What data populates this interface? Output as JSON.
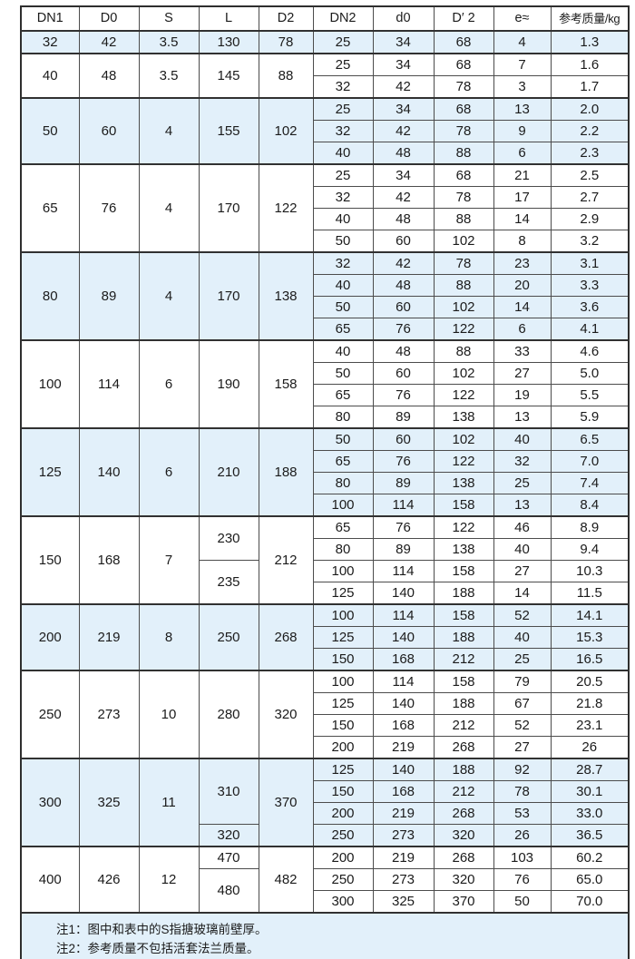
{
  "table": {
    "accent_blue": "#e2f0fa",
    "border_dark": "#2e2e2e",
    "headers": [
      "DN1",
      "D0",
      "S",
      "L",
      "D2",
      "DN2",
      "d0",
      "D′ 2",
      "e≈",
      "参考质量/kg"
    ],
    "groups": [
      {
        "dn1": "32",
        "d0": "42",
        "s": "3.5",
        "l": [
          {
            "v": "130",
            "span": 1
          }
        ],
        "d2": "78",
        "shaded": true,
        "rows": [
          [
            "25",
            "34",
            "68",
            "4",
            "1.3"
          ]
        ]
      },
      {
        "dn1": "40",
        "d0": "48",
        "s": "3.5",
        "l": [
          {
            "v": "145",
            "span": 2
          }
        ],
        "d2": "88",
        "shaded": false,
        "rows": [
          [
            "25",
            "34",
            "68",
            "7",
            "1.6"
          ],
          [
            "32",
            "42",
            "78",
            "3",
            "1.7"
          ]
        ]
      },
      {
        "dn1": "50",
        "d0": "60",
        "s": "4",
        "l": [
          {
            "v": "155",
            "span": 3
          }
        ],
        "d2": "102",
        "shaded": true,
        "rows": [
          [
            "25",
            "34",
            "68",
            "13",
            "2.0"
          ],
          [
            "32",
            "42",
            "78",
            "9",
            "2.2"
          ],
          [
            "40",
            "48",
            "88",
            "6",
            "2.3"
          ]
        ]
      },
      {
        "dn1": "65",
        "d0": "76",
        "s": "4",
        "l": [
          {
            "v": "170",
            "span": 4
          }
        ],
        "d2": "122",
        "shaded": false,
        "rows": [
          [
            "25",
            "34",
            "68",
            "21",
            "2.5"
          ],
          [
            "32",
            "42",
            "78",
            "17",
            "2.7"
          ],
          [
            "40",
            "48",
            "88",
            "14",
            "2.9"
          ],
          [
            "50",
            "60",
            "102",
            "8",
            "3.2"
          ]
        ]
      },
      {
        "dn1": "80",
        "d0": "89",
        "s": "4",
        "l": [
          {
            "v": "170",
            "span": 4
          }
        ],
        "d2": "138",
        "shaded": true,
        "rows": [
          [
            "32",
            "42",
            "78",
            "23",
            "3.1"
          ],
          [
            "40",
            "48",
            "88",
            "20",
            "3.3"
          ],
          [
            "50",
            "60",
            "102",
            "14",
            "3.6"
          ],
          [
            "65",
            "76",
            "122",
            "6",
            "4.1"
          ]
        ]
      },
      {
        "dn1": "100",
        "d0": "114",
        "s": "6",
        "l": [
          {
            "v": "190",
            "span": 4
          }
        ],
        "d2": "158",
        "shaded": false,
        "rows": [
          [
            "40",
            "48",
            "88",
            "33",
            "4.6"
          ],
          [
            "50",
            "60",
            "102",
            "27",
            "5.0"
          ],
          [
            "65",
            "76",
            "122",
            "19",
            "5.5"
          ],
          [
            "80",
            "89",
            "138",
            "13",
            "5.9"
          ]
        ]
      },
      {
        "dn1": "125",
        "d0": "140",
        "s": "6",
        "l": [
          {
            "v": "210",
            "span": 4
          }
        ],
        "d2": "188",
        "shaded": true,
        "rows": [
          [
            "50",
            "60",
            "102",
            "40",
            "6.5"
          ],
          [
            "65",
            "76",
            "122",
            "32",
            "7.0"
          ],
          [
            "80",
            "89",
            "138",
            "25",
            "7.4"
          ],
          [
            "100",
            "114",
            "158",
            "13",
            "8.4"
          ]
        ]
      },
      {
        "dn1": "150",
        "d0": "168",
        "s": "7",
        "l": [
          {
            "v": "230",
            "span": 2
          },
          {
            "v": "235",
            "span": 2
          }
        ],
        "d2": "212",
        "shaded": false,
        "rows": [
          [
            "65",
            "76",
            "122",
            "46",
            "8.9"
          ],
          [
            "80",
            "89",
            "138",
            "40",
            "9.4"
          ],
          [
            "100",
            "114",
            "158",
            "27",
            "10.3"
          ],
          [
            "125",
            "140",
            "188",
            "14",
            "11.5"
          ]
        ]
      },
      {
        "dn1": "200",
        "d0": "219",
        "s": "8",
        "l": [
          {
            "v": "250",
            "span": 3
          }
        ],
        "d2": "268",
        "shaded": true,
        "rows": [
          [
            "100",
            "114",
            "158",
            "52",
            "14.1"
          ],
          [
            "125",
            "140",
            "188",
            "40",
            "15.3"
          ],
          [
            "150",
            "168",
            "212",
            "25",
            "16.5"
          ]
        ]
      },
      {
        "dn1": "250",
        "d0": "273",
        "s": "10",
        "l": [
          {
            "v": "280",
            "span": 4
          }
        ],
        "d2": "320",
        "shaded": false,
        "rows": [
          [
            "100",
            "114",
            "158",
            "79",
            "20.5"
          ],
          [
            "125",
            "140",
            "188",
            "67",
            "21.8"
          ],
          [
            "150",
            "168",
            "212",
            "52",
            "23.1"
          ],
          [
            "200",
            "219",
            "268",
            "27",
            "26"
          ]
        ]
      },
      {
        "dn1": "300",
        "d0": "325",
        "s": "11",
        "l": [
          {
            "v": "310",
            "span": 3
          },
          {
            "v": "320",
            "span": 1
          }
        ],
        "d2": "370",
        "shaded": true,
        "rows": [
          [
            "125",
            "140",
            "188",
            "92",
            "28.7"
          ],
          [
            "150",
            "168",
            "212",
            "78",
            "30.1"
          ],
          [
            "200",
            "219",
            "268",
            "53",
            "33.0"
          ],
          [
            "250",
            "273",
            "320",
            "26",
            "36.5"
          ]
        ]
      },
      {
        "dn1": "400",
        "d0": "426",
        "s": "12",
        "l": [
          {
            "v": "470",
            "span": 1
          },
          {
            "v": "480",
            "span": 2
          }
        ],
        "d2": "482",
        "shaded": false,
        "rows": [
          [
            "200",
            "219",
            "268",
            "103",
            "60.2"
          ],
          [
            "250",
            "273",
            "320",
            "76",
            "65.0"
          ],
          [
            "300",
            "325",
            "370",
            "50",
            "70.0"
          ]
        ]
      }
    ],
    "notes": [
      "注1：图中和表中的S指搪玻璃前壁厚。",
      "注2：参考质量不包括活套法兰质量。"
    ]
  }
}
